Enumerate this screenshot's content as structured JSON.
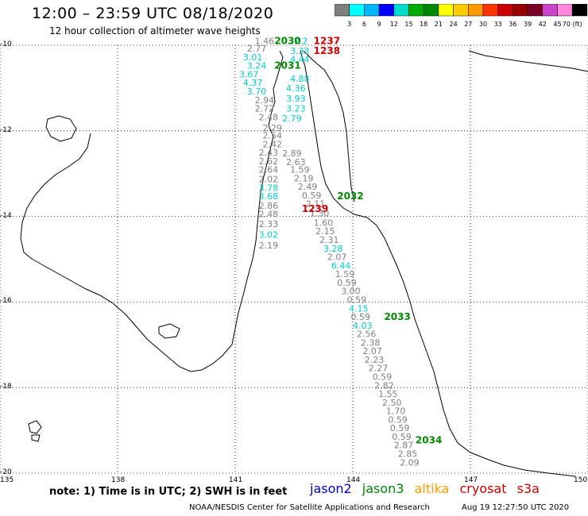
{
  "header": {
    "title": "12:00 – 23:59 UTC 08/18/2020",
    "subtitle": "12 hour collection of altimeter wave heights"
  },
  "colorbar": {
    "ticks": [
      "3",
      "6",
      "9",
      "12",
      "15",
      "18",
      "21",
      "24",
      "27",
      "30",
      "33",
      "36",
      "39",
      "42",
      "45",
      "70 (ft)"
    ],
    "colors": [
      "#7f7f7f",
      "#00ffff",
      "#00b7ff",
      "#0000ff",
      "#00ddcc",
      "#00aa00",
      "#008800",
      "#ffff00",
      "#ffcc00",
      "#ff9900",
      "#ff3300",
      "#cc0000",
      "#990000",
      "#7a0026",
      "#cc44cc",
      "#ff88dd",
      "#000000"
    ]
  },
  "map_data": {
    "lat_labels": [
      "-10",
      "-12",
      "-14",
      "-16",
      "-18",
      "-20"
    ],
    "lon_labels": [
      "135",
      "138",
      "141",
      "144",
      "147",
      "150"
    ],
    "wave_heights": [
      {
        "v": "1.46",
        "c": "#808080",
        "x": 141.5,
        "y": -9.97
      },
      {
        "v": "2.77",
        "c": "#808080",
        "x": 141.3,
        "y": -10.15
      },
      {
        "v": "3.01",
        "c": "#00cccc",
        "x": 141.2,
        "y": -10.35
      },
      {
        "v": "3.24",
        "c": "#00cccc",
        "x": 141.3,
        "y": -10.55
      },
      {
        "v": "3.67",
        "c": "#00cccc",
        "x": 141.1,
        "y": -10.75
      },
      {
        "v": "4.37",
        "c": "#00cccc",
        "x": 141.2,
        "y": -10.95
      },
      {
        "v": "3.70",
        "c": "#00cccc",
        "x": 141.3,
        "y": -11.15
      },
      {
        "v": "2.94",
        "c": "#808080",
        "x": 141.5,
        "y": -11.35
      },
      {
        "v": "2.72",
        "c": "#808080",
        "x": 141.5,
        "y": -11.55
      },
      {
        "v": "2.48",
        "c": "#808080",
        "x": 141.6,
        "y": -11.75
      },
      {
        "v": "2.29",
        "c": "#808080",
        "x": 141.7,
        "y": -12.0
      },
      {
        "v": "2.54",
        "c": "#808080",
        "x": 141.7,
        "y": -12.18
      },
      {
        "v": "2.42",
        "c": "#808080",
        "x": 141.7,
        "y": -12.38
      },
      {
        "v": "2.43",
        "c": "#808080",
        "x": 141.6,
        "y": -12.58
      },
      {
        "v": "2.62",
        "c": "#808080",
        "x": 141.6,
        "y": -12.78
      },
      {
        "v": "2.64",
        "c": "#808080",
        "x": 141.6,
        "y": -12.98
      },
      {
        "v": "2.02",
        "c": "#808080",
        "x": 141.6,
        "y": -13.2
      },
      {
        "v": "3.78",
        "c": "#00cccc",
        "x": 141.6,
        "y": -13.4
      },
      {
        "v": "3.68",
        "c": "#00cccc",
        "x": 141.6,
        "y": -13.6
      },
      {
        "v": "2.86",
        "c": "#808080",
        "x": 141.6,
        "y": -13.82
      },
      {
        "v": "2.48",
        "c": "#808080",
        "x": 141.6,
        "y": -14.02
      },
      {
        "v": "2.33",
        "c": "#808080",
        "x": 141.6,
        "y": -14.25
      },
      {
        "v": "3.02",
        "c": "#00cccc",
        "x": 141.6,
        "y": -14.5
      },
      {
        "v": "2.19",
        "c": "#808080",
        "x": 141.6,
        "y": -14.75
      },
      {
        "v": "2.2",
        "c": "#00cccc",
        "x": 142.5,
        "y": -9.97
      },
      {
        "v": "3.33",
        "c": "#00cccc",
        "x": 142.4,
        "y": -10.2
      },
      {
        "v": "4.44",
        "c": "#00cccc",
        "x": 142.4,
        "y": -10.4
      },
      {
        "v": "4.88",
        "c": "#00cccc",
        "x": 142.4,
        "y": -10.85
      },
      {
        "v": "4.36",
        "c": "#00cccc",
        "x": 142.3,
        "y": -11.08
      },
      {
        "v": "3.93",
        "c": "#00cccc",
        "x": 142.3,
        "y": -11.32
      },
      {
        "v": "3.23",
        "c": "#00cccc",
        "x": 142.3,
        "y": -11.55
      },
      {
        "v": "2.79",
        "c": "#00cccc",
        "x": 142.2,
        "y": -11.78
      },
      {
        "v": "2.89",
        "c": "#808080",
        "x": 142.2,
        "y": -12.6
      },
      {
        "v": "2.63",
        "c": "#808080",
        "x": 142.3,
        "y": -12.8
      },
      {
        "v": "1.59",
        "c": "#808080",
        "x": 142.4,
        "y": -12.98
      },
      {
        "v": "2.19",
        "c": "#808080",
        "x": 142.5,
        "y": -13.18
      },
      {
        "v": "2.49",
        "c": "#808080",
        "x": 142.6,
        "y": -13.38
      },
      {
        "v": "0.59",
        "c": "#808080",
        "x": 142.7,
        "y": -13.58
      },
      {
        "v": "2.11",
        "c": "#808080",
        "x": 142.8,
        "y": -13.78
      },
      {
        "v": "1.30",
        "c": "#808080",
        "x": 142.9,
        "y": -14.0
      },
      {
        "v": "1.60",
        "c": "#808080",
        "x": 143.0,
        "y": -14.22
      },
      {
        "v": "2.15",
        "c": "#808080",
        "x": 143.05,
        "y": -14.42
      },
      {
        "v": "2.31",
        "c": "#808080",
        "x": 143.15,
        "y": -14.62
      },
      {
        "v": "3.28",
        "c": "#00cccc",
        "x": 143.25,
        "y": -14.82
      },
      {
        "v": "2.07",
        "c": "#808080",
        "x": 143.35,
        "y": -15.02
      },
      {
        "v": "6.44",
        "c": "#00cccc",
        "x": 143.45,
        "y": -15.22
      },
      {
        "v": "1.59",
        "c": "#808080",
        "x": 143.55,
        "y": -15.42
      },
      {
        "v": "0.59",
        "c": "#808080",
        "x": 143.6,
        "y": -15.62
      },
      {
        "v": "3.00",
        "c": "#808080",
        "x": 143.7,
        "y": -15.82
      },
      {
        "v": "0.59",
        "c": "#808080",
        "x": 143.85,
        "y": -16.02
      },
      {
        "v": "4.15",
        "c": "#00cccc",
        "x": 143.9,
        "y": -16.22
      },
      {
        "v": "0.59",
        "c": "#808080",
        "x": 143.95,
        "y": -16.42
      },
      {
        "v": "4.03",
        "c": "#00cccc",
        "x": 144.0,
        "y": -16.62
      },
      {
        "v": "2.56",
        "c": "#808080",
        "x": 144.1,
        "y": -16.82
      },
      {
        "v": "2.38",
        "c": "#808080",
        "x": 144.2,
        "y": -17.02
      },
      {
        "v": "2.07",
        "c": "#808080",
        "x": 144.25,
        "y": -17.22
      },
      {
        "v": "2.23",
        "c": "#808080",
        "x": 144.3,
        "y": -17.42
      },
      {
        "v": "2.27",
        "c": "#808080",
        "x": 144.4,
        "y": -17.62
      },
      {
        "v": "0.59",
        "c": "#808080",
        "x": 144.5,
        "y": -17.82
      },
      {
        "v": "2.82",
        "c": "#808080",
        "x": 144.55,
        "y": -18.02
      },
      {
        "v": "1.55",
        "c": "#808080",
        "x": 144.65,
        "y": -18.22
      },
      {
        "v": "2.50",
        "c": "#808080",
        "x": 144.75,
        "y": -18.42
      },
      {
        "v": "1.70",
        "c": "#808080",
        "x": 144.85,
        "y": -18.62
      },
      {
        "v": "0.59",
        "c": "#808080",
        "x": 144.9,
        "y": -18.82
      },
      {
        "v": "0.59",
        "c": "#808080",
        "x": 144.95,
        "y": -19.02
      },
      {
        "v": "0.59",
        "c": "#808080",
        "x": 145.0,
        "y": -19.22
      },
      {
        "v": "2.87",
        "c": "#808080",
        "x": 145.05,
        "y": -19.42
      },
      {
        "v": "2.85",
        "c": "#808080",
        "x": 145.15,
        "y": -19.62
      },
      {
        "v": "2.09",
        "c": "#808080",
        "x": 145.2,
        "y": -19.82
      }
    ],
    "pass_times": [
      {
        "t": "2030",
        "c": "#008800",
        "x": 142.0,
        "y": -9.97
      },
      {
        "t": "2031",
        "c": "#008800",
        "x": 142.0,
        "y": -10.55
      },
      {
        "t": "2032",
        "c": "#008800",
        "x": 143.6,
        "y": -13.6
      },
      {
        "t": "2033",
        "c": "#008800",
        "x": 144.8,
        "y": -16.42
      },
      {
        "t": "2034",
        "c": "#008800",
        "x": 145.6,
        "y": -19.3
      },
      {
        "t": "1237",
        "c": "#cc0000",
        "x": 143.0,
        "y": -9.97
      },
      {
        "t": "1238",
        "c": "#cc0000",
        "x": 143.0,
        "y": -10.2
      },
      {
        "t": "1239",
        "c": "#cc0000",
        "x": 142.7,
        "y": -13.9
      }
    ]
  },
  "note": "note: 1) Time is in UTC; 2) SWH is in feet",
  "legend": {
    "jason2": {
      "label": "jason2",
      "color": "#0000cc"
    },
    "jason3": {
      "label": "jason3",
      "color": "#008800"
    },
    "altika": {
      "label": "altika",
      "color": "#ff9900"
    },
    "cryosat": {
      "label": "cryosat",
      "color": "#cc0000"
    },
    "s3a": {
      "label": "s3a",
      "color": "#cc0000"
    }
  },
  "footer": {
    "source": "NOAA/NESDIS Center for Satellite Applications and Research",
    "timestamp": "Aug 19 12:27:50 UTC 2020"
  }
}
